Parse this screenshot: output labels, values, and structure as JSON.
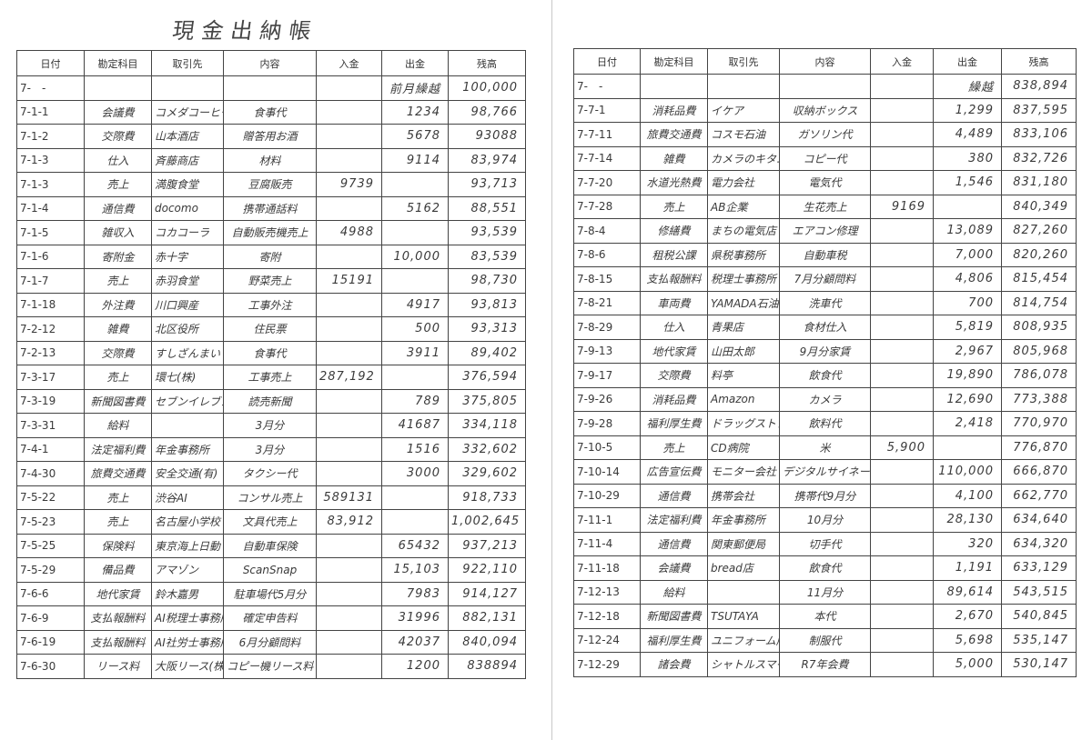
{
  "title": "現金出納帳",
  "columns": [
    "日付",
    "勘定科目",
    "取引先",
    "内容",
    "入金",
    "出金",
    "残高"
  ],
  "left_page": {
    "rows": [
      [
        "7-　-",
        "",
        "",
        "",
        "",
        "前月繰越",
        "100,000"
      ],
      [
        "7-1-1",
        "会議費",
        "コメダコーヒー",
        "食事代",
        "",
        "1234",
        "98,766"
      ],
      [
        "7-1-2",
        "交際費",
        "山本酒店",
        "贈答用お酒",
        "",
        "5678",
        "93088"
      ],
      [
        "7-1-3",
        "仕入",
        "斉藤商店",
        "材料",
        "",
        "9114",
        "83,974"
      ],
      [
        "7-1-3",
        "売上",
        "満腹食堂",
        "豆腐販売",
        "9739",
        "",
        "93,713"
      ],
      [
        "7-1-4",
        "通信費",
        "docomo",
        "携帯通話料",
        "",
        "5162",
        "88,551"
      ],
      [
        "7-1-5",
        "雑収入",
        "コカコーラ",
        "自動販売機売上",
        "4988",
        "",
        "93,539"
      ],
      [
        "7-1-6",
        "寄附金",
        "赤十字",
        "寄附",
        "",
        "10,000",
        "83,539"
      ],
      [
        "7-1-7",
        "売上",
        "赤羽食堂",
        "野菜売上",
        "15191",
        "",
        "98,730"
      ],
      [
        "7-1-18",
        "外注費",
        "川口興産",
        "工事外注",
        "",
        "4917",
        "93,813"
      ],
      [
        "7-2-12",
        "雑費",
        "北区役所",
        "住民票",
        "",
        "500",
        "93,313"
      ],
      [
        "7-2-13",
        "交際費",
        "すしざんまい",
        "食事代",
        "",
        "3911",
        "89,402"
      ],
      [
        "7-3-17",
        "売上",
        "環七(株)",
        "工事売上",
        "287,192",
        "",
        "376,594"
      ],
      [
        "7-3-19",
        "新聞図書費",
        "セブンイレブン",
        "読売新聞",
        "",
        "789",
        "375,805"
      ],
      [
        "7-3-31",
        "給料",
        "",
        "3月分",
        "",
        "41687",
        "334,118"
      ],
      [
        "7-4-1",
        "法定福利費",
        "年金事務所",
        "3月分",
        "",
        "1516",
        "332,602"
      ],
      [
        "7-4-30",
        "旅費交通費",
        "安全交通(有)",
        "タクシー代",
        "",
        "3000",
        "329,602"
      ],
      [
        "7-5-22",
        "売上",
        "渋谷AI",
        "コンサル売上",
        "589131",
        "",
        "918,733"
      ],
      [
        "7-5-23",
        "売上",
        "名古屋小学校",
        "文具代売上",
        "83,912",
        "",
        "1,002,645"
      ],
      [
        "7-5-25",
        "保険料",
        "東京海上日動",
        "自動車保険",
        "",
        "65432",
        "937,213"
      ],
      [
        "7-5-29",
        "備品費",
        "アマゾン",
        "ScanSnap",
        "",
        "15,103",
        "922,110"
      ],
      [
        "7-6-6",
        "地代家賃",
        "鈴木嘉男",
        "駐車場代5月分",
        "",
        "7983",
        "914,127"
      ],
      [
        "7-6-9",
        "支払報酬料",
        "AI税理士事務所",
        "確定申告料",
        "",
        "31996",
        "882,131"
      ],
      [
        "7-6-19",
        "支払報酬料",
        "AI社労士事務所",
        "6月分顧問料",
        "",
        "42037",
        "840,094"
      ],
      [
        "7-6-30",
        "リース料",
        "大阪リース(株)",
        "コピー機リース料",
        "",
        "1200",
        "838894"
      ]
    ]
  },
  "right_page": {
    "rows": [
      [
        "7-　-",
        "",
        "",
        "",
        "",
        "繰越",
        "838,894"
      ],
      [
        "7-7-1",
        "消耗品費",
        "イケア",
        "収納ボックス",
        "",
        "1,299",
        "837,595"
      ],
      [
        "7-7-11",
        "旅費交通費",
        "コスモ石油",
        "ガソリン代",
        "",
        "4,489",
        "833,106"
      ],
      [
        "7-7-14",
        "雑費",
        "カメラのキタムラ",
        "コピー代",
        "",
        "380",
        "832,726"
      ],
      [
        "7-7-20",
        "水道光熱費",
        "電力会社",
        "電気代",
        "",
        "1,546",
        "831,180"
      ],
      [
        "7-7-28",
        "売上",
        "AB企業",
        "生花売上",
        "9169",
        "",
        "840,349"
      ],
      [
        "7-8-4",
        "修繕費",
        "まちの電気店",
        "エアコン修理",
        "",
        "13,089",
        "827,260"
      ],
      [
        "7-8-6",
        "租税公課",
        "県税事務所",
        "自動車税",
        "",
        "7,000",
        "820,260"
      ],
      [
        "7-8-15",
        "支払報酬料",
        "税理士事務所",
        "7月分顧問料",
        "",
        "4,806",
        "815,454"
      ],
      [
        "7-8-21",
        "車両費",
        "YAMADA石油",
        "洗車代",
        "",
        "700",
        "814,754"
      ],
      [
        "7-8-29",
        "仕入",
        "青果店",
        "食材仕入",
        "",
        "5,819",
        "808,935"
      ],
      [
        "7-9-13",
        "地代家賃",
        "山田太郎",
        "9月分家賃",
        "",
        "2,967",
        "805,968"
      ],
      [
        "7-9-17",
        "交際費",
        "料亭",
        "飲食代",
        "",
        "19,890",
        "786,078"
      ],
      [
        "7-9-26",
        "消耗品費",
        "Amazon",
        "カメラ",
        "",
        "12,690",
        "773,388"
      ],
      [
        "7-9-28",
        "福利厚生費",
        "ドラッグストア",
        "飲料代",
        "",
        "2,418",
        "770,970"
      ],
      [
        "7-10-5",
        "売上",
        "CD病院",
        "米",
        "5,900",
        "",
        "776,870"
      ],
      [
        "7-10-14",
        "広告宣伝費",
        "モニター会社",
        "デジタルサイネージ",
        "",
        "110,000",
        "666,870"
      ],
      [
        "7-10-29",
        "通信費",
        "携帯会社",
        "携帯代9月分",
        "",
        "4,100",
        "662,770"
      ],
      [
        "7-11-1",
        "法定福利費",
        "年金事務所",
        "10月分",
        "",
        "28,130",
        "634,640"
      ],
      [
        "7-11-4",
        "通信費",
        "関東郵便局",
        "切手代",
        "",
        "320",
        "634,320"
      ],
      [
        "7-11-18",
        "会議費",
        "bread店",
        "飲食代",
        "",
        "1,191",
        "633,129"
      ],
      [
        "7-12-13",
        "給料",
        "",
        "11月分",
        "",
        "89,614",
        "543,515"
      ],
      [
        "7-12-18",
        "新聞図書費",
        "TSUTAYA",
        "本代",
        "",
        "2,670",
        "540,845"
      ],
      [
        "7-12-24",
        "福利厚生費",
        "ユニフォーム店",
        "制服代",
        "",
        "5,698",
        "535,147"
      ],
      [
        "7-12-29",
        "諸会費",
        "シャトルスマイル会",
        "R7年会費",
        "",
        "5,000",
        "530,147"
      ]
    ]
  }
}
